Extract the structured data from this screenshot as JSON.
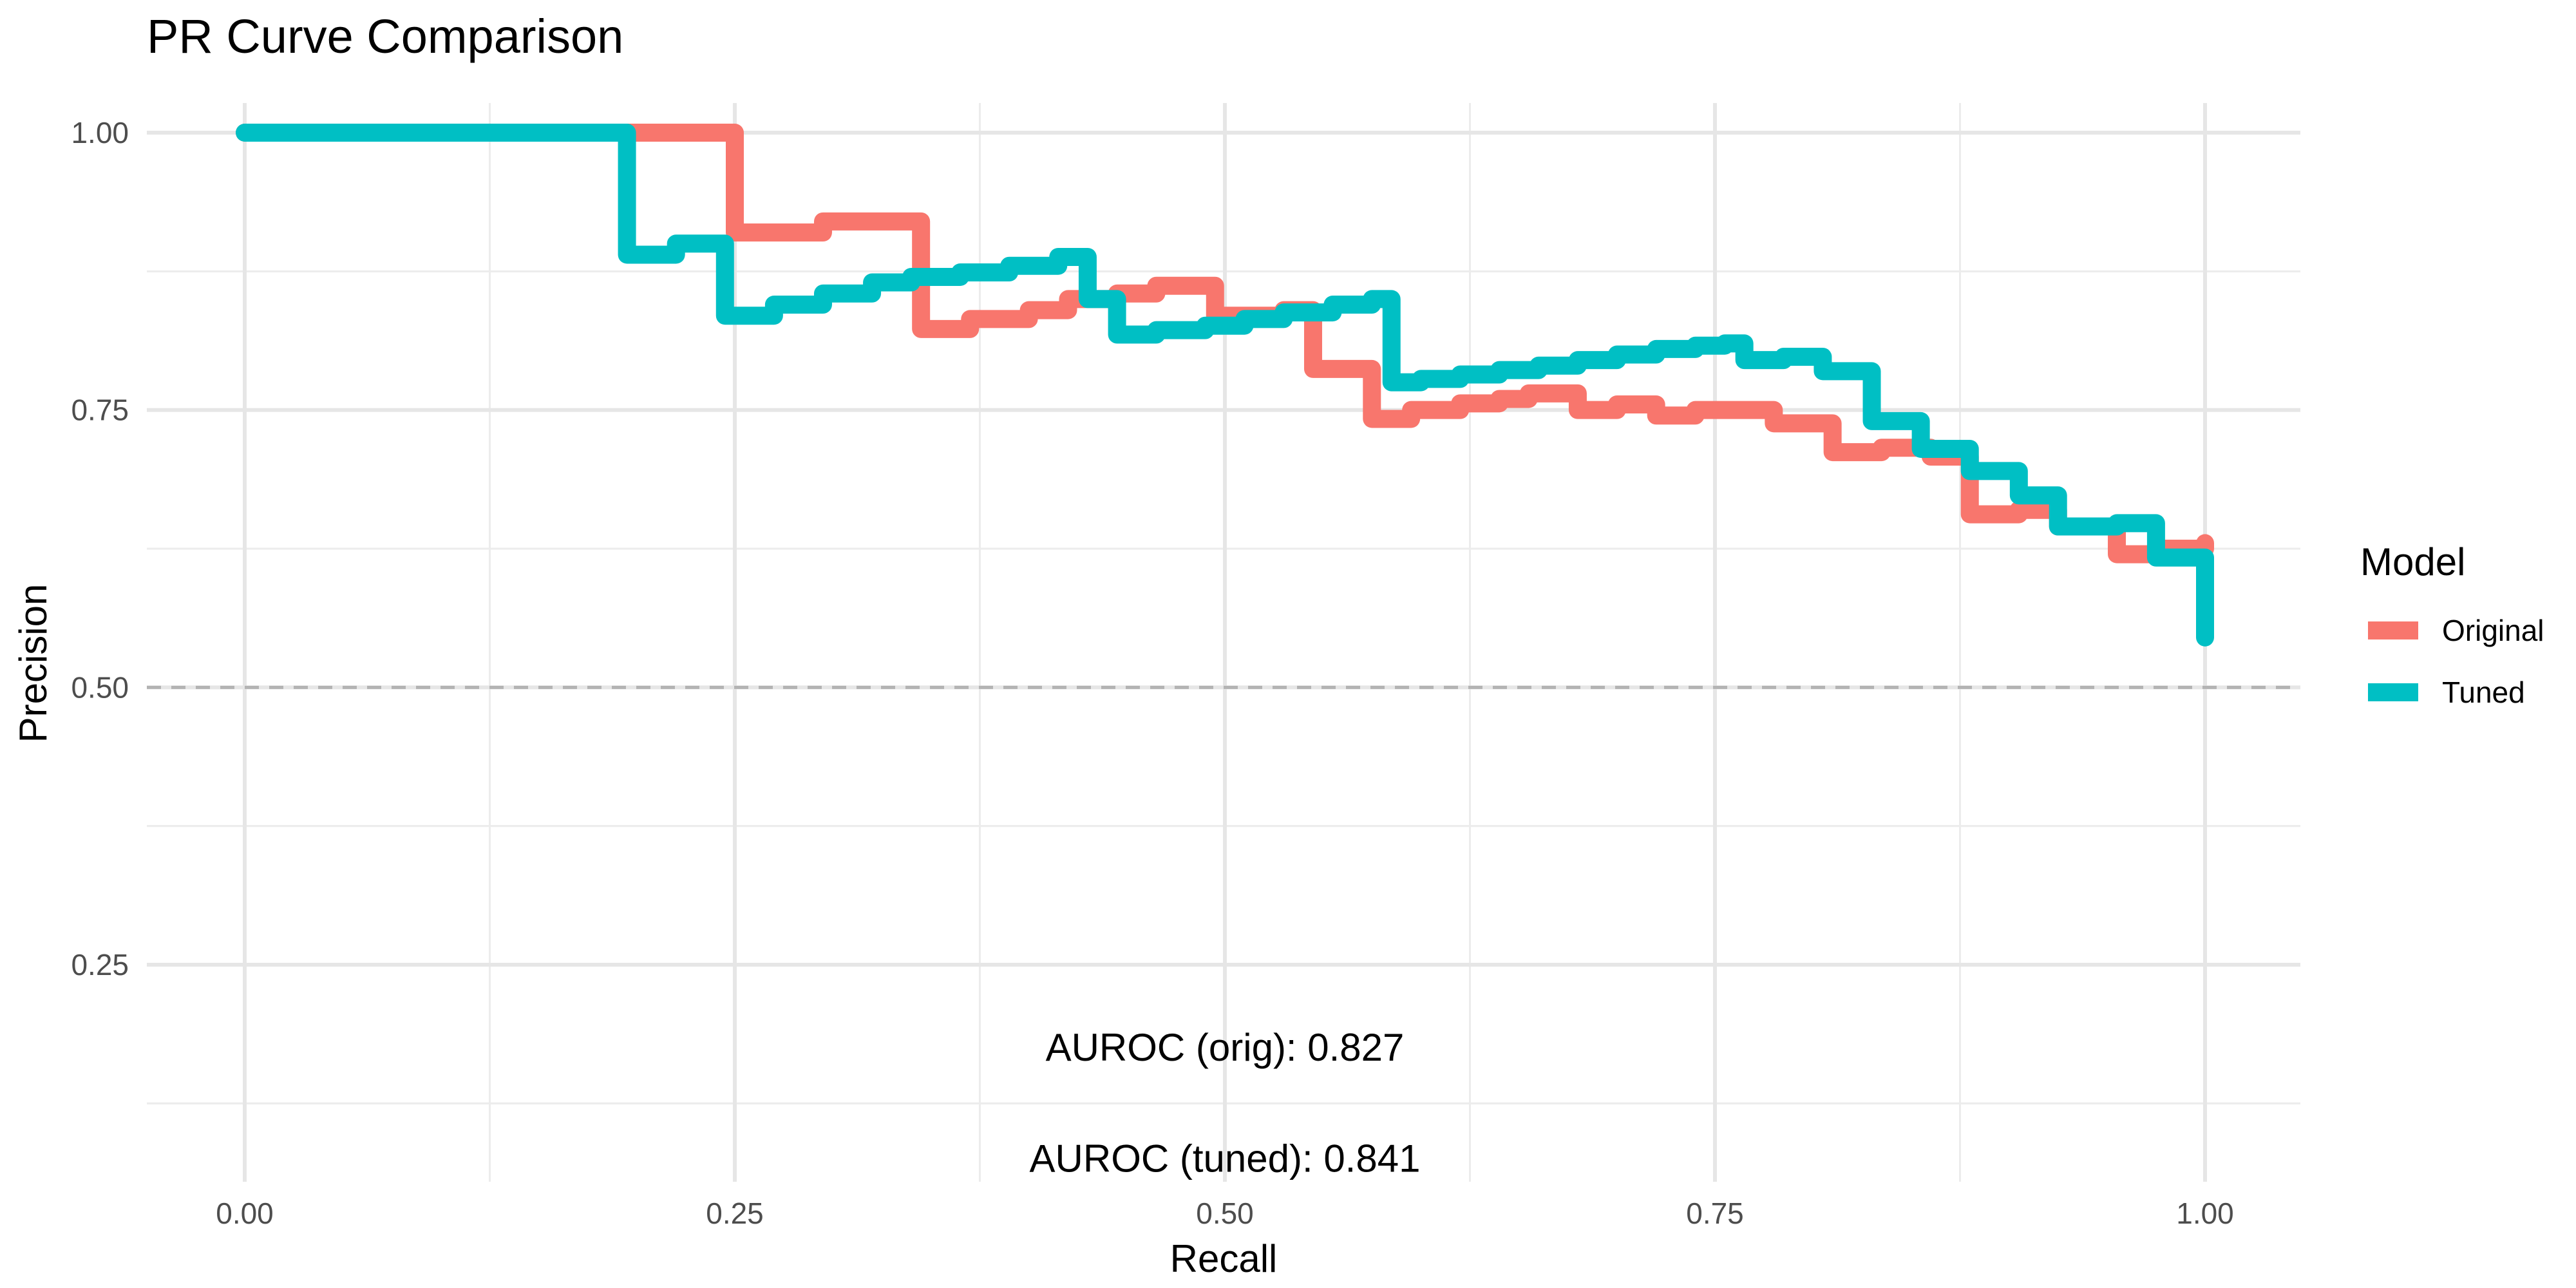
{
  "chart_data": {
    "type": "line",
    "step": "post",
    "title": "PR Curve Comparison",
    "xlabel": "Recall",
    "ylabel": "Precision",
    "xlim": [
      0,
      1
    ],
    "ylim": [
      0.1,
      1.03
    ],
    "x_ticks": [
      0.0,
      0.25,
      0.5,
      0.75,
      1.0
    ],
    "x_tick_labels": [
      "0.00",
      "0.25",
      "0.50",
      "0.75",
      "1.00"
    ],
    "y_ticks": [
      0.25,
      0.5,
      0.75,
      1.0
    ],
    "y_tick_labels": [
      "0.25",
      "0.50",
      "0.75",
      "1.00"
    ],
    "grid": true,
    "reference_line": {
      "y": 0.5,
      "style": "dashed",
      "color": "#b3b3b3"
    },
    "legend": {
      "title": "Model",
      "placement": "right",
      "entries": [
        "Original",
        "Tuned"
      ]
    },
    "series": [
      {
        "name": "Original",
        "color": "#F8766D",
        "x": [
          0.0,
          0.22,
          0.25,
          0.295,
          0.345,
          0.37,
          0.4,
          0.42,
          0.445,
          0.465,
          0.495,
          0.51,
          0.53,
          0.545,
          0.575,
          0.595,
          0.62,
          0.64,
          0.655,
          0.68,
          0.7,
          0.72,
          0.74,
          0.76,
          0.78,
          0.81,
          0.835,
          0.86,
          0.88,
          0.905,
          0.925,
          0.955,
          0.975,
          1.0
        ],
        "y": [
          1.0,
          1.0,
          0.91,
          0.92,
          0.823,
          0.832,
          0.84,
          0.85,
          0.855,
          0.862,
          0.835,
          0.835,
          0.84,
          0.787,
          0.742,
          0.75,
          0.756,
          0.76,
          0.765,
          0.75,
          0.755,
          0.745,
          0.75,
          0.75,
          0.738,
          0.712,
          0.716,
          0.708,
          0.656,
          0.66,
          0.645,
          0.62,
          0.625,
          0.63
        ]
      },
      {
        "name": "Tuned",
        "color": "#00BFC4",
        "x": [
          0.0,
          0.195,
          0.22,
          0.245,
          0.27,
          0.295,
          0.32,
          0.34,
          0.365,
          0.39,
          0.415,
          0.43,
          0.445,
          0.465,
          0.49,
          0.51,
          0.53,
          0.555,
          0.575,
          0.585,
          0.6,
          0.62,
          0.64,
          0.66,
          0.68,
          0.7,
          0.72,
          0.74,
          0.755,
          0.765,
          0.785,
          0.805,
          0.83,
          0.855,
          0.875,
          0.88,
          0.905,
          0.925,
          0.955,
          0.975,
          1.0
        ],
        "y": [
          1.0,
          0.89,
          0.9,
          0.835,
          0.845,
          0.855,
          0.865,
          0.87,
          0.874,
          0.88,
          0.888,
          0.85,
          0.818,
          0.822,
          0.826,
          0.832,
          0.838,
          0.845,
          0.85,
          0.775,
          0.778,
          0.782,
          0.786,
          0.79,
          0.795,
          0.8,
          0.805,
          0.808,
          0.81,
          0.795,
          0.798,
          0.785,
          0.74,
          0.715,
          0.715,
          0.695,
          0.673,
          0.645,
          0.648,
          0.617,
          0.545
        ]
      }
    ],
    "annotations": [
      {
        "text": "AUROC (orig): 0.827",
        "x": 0.5,
        "y": 0.175
      },
      {
        "text": "AUROC (tuned): 0.841",
        "x": 0.5,
        "y": 0.075
      }
    ]
  }
}
